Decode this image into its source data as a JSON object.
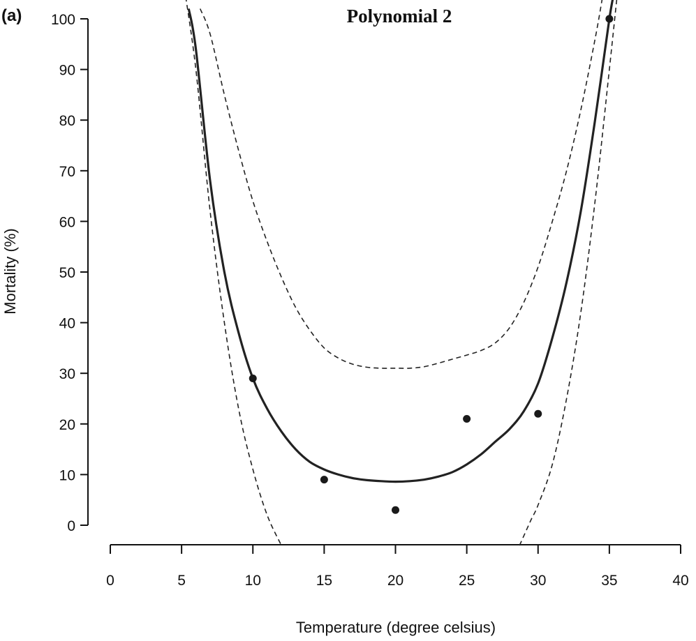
{
  "chart_data": {
    "type": "scatter",
    "panel_label": "(a)",
    "title": "Polynomial 2",
    "xlabel": "Temperature (degree celsius)",
    "ylabel": "Mortality (%)",
    "xlim": [
      0,
      40
    ],
    "ylim": [
      0,
      100
    ],
    "x_ticks": [
      0,
      5,
      10,
      15,
      20,
      25,
      30,
      35,
      40
    ],
    "y_ticks": [
      0,
      10,
      20,
      30,
      40,
      50,
      60,
      70,
      80,
      90,
      100
    ],
    "grid": false,
    "points": [
      {
        "x": 10,
        "y": 29
      },
      {
        "x": 15,
        "y": 9
      },
      {
        "x": 20,
        "y": 3
      },
      {
        "x": 25,
        "y": 21
      },
      {
        "x": 30,
        "y": 22
      },
      {
        "x": 35,
        "y": 100
      }
    ],
    "fit": {
      "style": "solid",
      "points": [
        {
          "x": 5.5,
          "y": 102
        },
        {
          "x": 6.0,
          "y": 94
        },
        {
          "x": 7.0,
          "y": 68
        },
        {
          "x": 8.0,
          "y": 50
        },
        {
          "x": 9.0,
          "y": 38
        },
        {
          "x": 10.0,
          "y": 29
        },
        {
          "x": 11.0,
          "y": 23
        },
        {
          "x": 12.0,
          "y": 18.5
        },
        {
          "x": 13.0,
          "y": 15
        },
        {
          "x": 14.0,
          "y": 12.5
        },
        {
          "x": 15.0,
          "y": 11
        },
        {
          "x": 16.0,
          "y": 10
        },
        {
          "x": 17.0,
          "y": 9.3
        },
        {
          "x": 18.0,
          "y": 8.9
        },
        {
          "x": 19.0,
          "y": 8.7
        },
        {
          "x": 20.0,
          "y": 8.6
        },
        {
          "x": 21.0,
          "y": 8.7
        },
        {
          "x": 22.0,
          "y": 9.0
        },
        {
          "x": 23.0,
          "y": 9.6
        },
        {
          "x": 24.0,
          "y": 10.5
        },
        {
          "x": 25.0,
          "y": 12
        },
        {
          "x": 26.0,
          "y": 14
        },
        {
          "x": 27.0,
          "y": 16.5
        },
        {
          "x": 28.0,
          "y": 19
        },
        {
          "x": 29.0,
          "y": 22.5
        },
        {
          "x": 30.0,
          "y": 28
        },
        {
          "x": 31.0,
          "y": 37
        },
        {
          "x": 32.0,
          "y": 48
        },
        {
          "x": 33.0,
          "y": 62
        },
        {
          "x": 34.0,
          "y": 80
        },
        {
          "x": 35.0,
          "y": 100
        },
        {
          "x": 35.4,
          "y": 106
        }
      ]
    },
    "upper_band": {
      "style": "dashed",
      "points": [
        {
          "x": 6.3,
          "y": 102
        },
        {
          "x": 7.0,
          "y": 97
        },
        {
          "x": 8.0,
          "y": 85
        },
        {
          "x": 9.0,
          "y": 74
        },
        {
          "x": 10.0,
          "y": 64
        },
        {
          "x": 11.0,
          "y": 56
        },
        {
          "x": 12.0,
          "y": 49
        },
        {
          "x": 13.0,
          "y": 43
        },
        {
          "x": 14.0,
          "y": 38.5
        },
        {
          "x": 15.0,
          "y": 35
        },
        {
          "x": 16.0,
          "y": 33
        },
        {
          "x": 17.0,
          "y": 31.8
        },
        {
          "x": 18.0,
          "y": 31.2
        },
        {
          "x": 19.0,
          "y": 31
        },
        {
          "x": 20.0,
          "y": 31
        },
        {
          "x": 21.0,
          "y": 31
        },
        {
          "x": 22.0,
          "y": 31.3
        },
        {
          "x": 23.0,
          "y": 32
        },
        {
          "x": 24.0,
          "y": 32.8
        },
        {
          "x": 25.0,
          "y": 33.6
        },
        {
          "x": 26.0,
          "y": 34.5
        },
        {
          "x": 27.0,
          "y": 36
        },
        {
          "x": 28.0,
          "y": 39
        },
        {
          "x": 29.0,
          "y": 44
        },
        {
          "x": 30.0,
          "y": 51
        },
        {
          "x": 31.0,
          "y": 60
        },
        {
          "x": 32.0,
          "y": 70
        },
        {
          "x": 33.0,
          "y": 82
        },
        {
          "x": 34.0,
          "y": 96
        },
        {
          "x": 34.5,
          "y": 104
        }
      ]
    },
    "lower_band": {
      "style": "dashed",
      "points": [
        {
          "x": 5.2,
          "y": 106
        },
        {
          "x": 6.0,
          "y": 90
        },
        {
          "x": 7.0,
          "y": 62
        },
        {
          "x": 8.0,
          "y": 40
        },
        {
          "x": 9.0,
          "y": 23
        },
        {
          "x": 10.0,
          "y": 11
        },
        {
          "x": 11.0,
          "y": 2
        },
        {
          "x": 12.0,
          "y": -4
        }
      ]
    },
    "lower_band_right": {
      "style": "dashed",
      "points": [
        {
          "x": 28.7,
          "y": -4
        },
        {
          "x": 29.5,
          "y": 1
        },
        {
          "x": 30.0,
          "y": 4
        },
        {
          "x": 31.0,
          "y": 12
        },
        {
          "x": 32.0,
          "y": 25
        },
        {
          "x": 33.0,
          "y": 42
        },
        {
          "x": 34.0,
          "y": 64
        },
        {
          "x": 35.0,
          "y": 90
        },
        {
          "x": 35.6,
          "y": 106
        }
      ]
    }
  }
}
